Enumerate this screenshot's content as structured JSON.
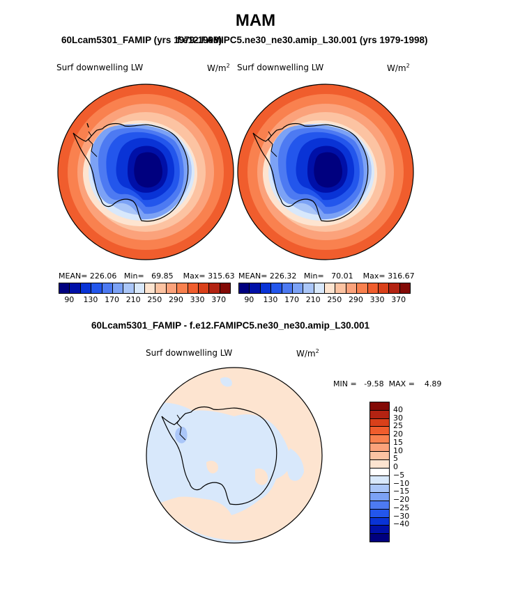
{
  "figure": {
    "title": "MAM",
    "left_case": "60Lcam5301_FAMIP (yrs 1979-1998)",
    "right_case": "f.e12.FAMIPC5.ne30_ne30.amip_L30.001 (yrs 1979-1998)",
    "diff_title": "60Lcam5301_FAMIP - f.e12.FAMIPC5.ne30_ne30.amip_L30.001"
  },
  "panels": {
    "left": {
      "variable": "Surf downwelling LW",
      "units": "W/m",
      "units_exp": "2",
      "mean_label": "MEAN=",
      "mean": "226.06",
      "min_label": "Min=",
      "min": "69.85",
      "max_label": "Max=",
      "max": "315.63"
    },
    "right": {
      "variable": "Surf downwelling LW",
      "units": "W/m",
      "units_exp": "2",
      "mean_label": "MEAN=",
      "mean": "226.32",
      "min_label": "Min=",
      "min": "70.01",
      "max_label": "Max=",
      "max": "316.67"
    },
    "diff": {
      "variable": "Surf downwelling LW",
      "units": "W/m",
      "units_exp": "2",
      "min_label": "MIN =",
      "min": "-9.58",
      "max_label": "MAX =",
      "max": "4.89"
    }
  },
  "colorbar_main": {
    "tick_labels": [
      "90",
      "130",
      "170",
      "210",
      "250",
      "290",
      "330",
      "370"
    ],
    "colors": [
      "#00007f",
      "#0010a8",
      "#0933d6",
      "#2356ec",
      "#4d7af2",
      "#7ca2f5",
      "#aac6f8",
      "#d8e8fb",
      "#fde4d0",
      "#fcc3a2",
      "#fba27b",
      "#f9814f",
      "#f05d2d",
      "#d9401a",
      "#b32312",
      "#830a06"
    ]
  },
  "colorbar_diff": {
    "tick_labels": [
      "40",
      "30",
      "25",
      "20",
      "15",
      "10",
      "5",
      "0",
      "−5",
      "−10",
      "−15",
      "−20",
      "−25",
      "−30",
      "−40"
    ],
    "colors": [
      "#830a06",
      "#b32312",
      "#d9401a",
      "#f05d2d",
      "#f9814f",
      "#fba27b",
      "#fcc3a2",
      "#fde4d0",
      "#ffffff",
      "#d8e8fb",
      "#aac6f8",
      "#7ca2f5",
      "#4d7af2",
      "#2356ec",
      "#0933d6",
      "#0010a8",
      "#00007f"
    ]
  }
}
